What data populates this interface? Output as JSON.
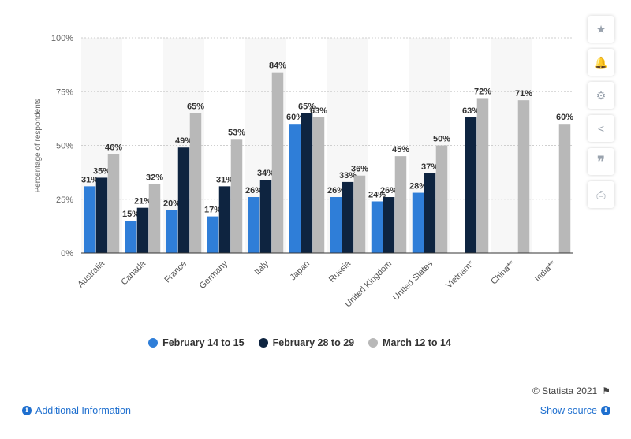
{
  "chart_data": {
    "type": "bar",
    "ylabel": "Percentage of respondents",
    "ylim": [
      0,
      100
    ],
    "yticks": [
      "0%",
      "25%",
      "50%",
      "75%",
      "100%"
    ],
    "categories": [
      "Australia",
      "Canada",
      "France",
      "Germany",
      "Italy",
      "Japan",
      "Russia",
      "United Kingdom",
      "United States",
      "Vietnam*",
      "China**",
      "India**"
    ],
    "series": [
      {
        "name": "February 14 to 15",
        "color": "#2f7ed8",
        "values": [
          31,
          15,
          20,
          17,
          26,
          60,
          26,
          24,
          28,
          null,
          null,
          null
        ]
      },
      {
        "name": "February 28 to 29",
        "color": "#0e2440",
        "values": [
          35,
          21,
          49,
          31,
          34,
          65,
          33,
          26,
          37,
          63,
          null,
          null
        ]
      },
      {
        "name": "March 12 to 14",
        "color": "#b8b8b8",
        "values": [
          46,
          32,
          65,
          53,
          84,
          63,
          36,
          45,
          50,
          72,
          71,
          60
        ]
      }
    ],
    "grid": true,
    "legend_position": "bottom"
  },
  "footer": {
    "credit": "© Statista 2021",
    "additional_info": "Additional Information",
    "show_source": "Show source"
  },
  "toolbar": {
    "icons": [
      "star-icon",
      "bell-icon",
      "gear-icon",
      "share-icon",
      "quote-icon",
      "print-icon"
    ]
  }
}
